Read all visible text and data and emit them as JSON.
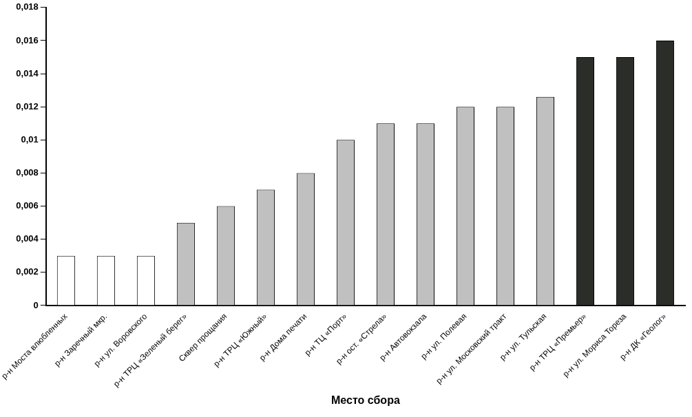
{
  "chart_data": {
    "type": "bar",
    "xlabel": "Место сбора",
    "categories": [
      "р-н Моста влюбленных",
      "р-н Заречный мкр.",
      "р-н ул. Воровского",
      "р-н ТРЦ «Зеленый берег»",
      "Сквер прощания",
      "р-н ТРЦ «Южный»",
      "р-н Дома печати",
      "р-н ТЦ «Порт»",
      "р-н ост. «Стрела»",
      "р-н Автовокзала",
      "р-н ул. Полевая",
      "р-н ул. Московский тракт",
      "р-н ул. Тульская",
      "р-н ТРЦ «Премьер»",
      "р-н ул. Мориса Тореза",
      "р-н ДК «Геолог»"
    ],
    "values": [
      0.003,
      0.003,
      0.003,
      0.005,
      0.006,
      0.007,
      0.008,
      0.01,
      0.011,
      0.011,
      0.012,
      0.012,
      0.0126,
      0.015,
      0.015,
      0.016
    ],
    "colors": [
      "#ffffff",
      "#ffffff",
      "#ffffff",
      "#c0c0c0",
      "#c0c0c0",
      "#c0c0c0",
      "#c0c0c0",
      "#c0c0c0",
      "#c0c0c0",
      "#c0c0c0",
      "#c0c0c0",
      "#c0c0c0",
      "#c0c0c0",
      "#2b2d28",
      "#2b2d28",
      "#2b2d28"
    ],
    "ylim": [
      0,
      0.018
    ],
    "yticks": [
      0,
      {
        "value": 0.002,
        "label": "0,002"
      },
      {
        "value": 0.004,
        "label": "0,004"
      },
      {
        "value": 0.006,
        "label": "0,006"
      },
      {
        "value": 0.008,
        "label": "0,008"
      },
      {
        "value": 0.01,
        "label": "0,01"
      },
      {
        "value": 0.012,
        "label": "0,012"
      },
      {
        "value": 0.014,
        "label": "0,014"
      },
      {
        "value": 0.016,
        "label": "0,016"
      },
      {
        "value": 0.018,
        "label": "0,018"
      }
    ],
    "grid": false,
    "legend": false
  }
}
